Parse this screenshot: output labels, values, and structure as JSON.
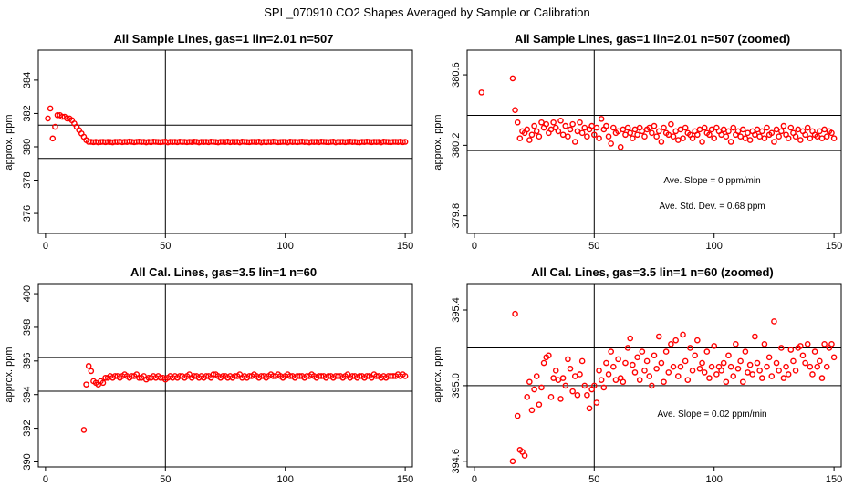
{
  "page_title": "SPL_070910  CO2 Shapes Averaged by Sample or Calibration",
  "marker_color": "#ff0000",
  "chart_data": [
    {
      "type": "scatter",
      "title": "All Sample Lines, gas=1 lin=2.01 n=507",
      "xlabel": "",
      "ylabel": "approx. ppm",
      "xlim": [
        -3,
        153
      ],
      "ylim": [
        374.8,
        385.8
      ],
      "xticks": [
        "0",
        "50",
        "100",
        "150"
      ],
      "yticks": [
        "376",
        "378",
        "380",
        "382",
        "384"
      ],
      "vline": 50,
      "hlines": [
        379.3,
        381.3
      ],
      "annotations": [],
      "x": [
        1,
        2,
        3,
        4,
        5,
        6,
        7,
        8,
        9,
        10,
        11,
        12,
        13,
        14,
        15,
        16,
        17,
        18,
        19,
        20,
        21,
        22,
        23,
        24,
        25,
        26,
        27,
        28,
        29,
        30,
        31,
        32,
        33,
        34,
        35,
        36,
        37,
        38,
        39,
        40,
        41,
        42,
        43,
        44,
        45,
        46,
        47,
        48,
        49,
        50,
        51,
        52,
        53,
        54,
        55,
        56,
        57,
        58,
        59,
        60,
        61,
        62,
        63,
        64,
        65,
        66,
        67,
        68,
        69,
        70,
        71,
        72,
        73,
        74,
        75,
        76,
        77,
        78,
        79,
        80,
        81,
        82,
        83,
        84,
        85,
        86,
        87,
        88,
        89,
        90,
        91,
        92,
        93,
        94,
        95,
        96,
        97,
        98,
        99,
        100,
        101,
        102,
        103,
        104,
        105,
        106,
        107,
        108,
        109,
        110,
        111,
        112,
        113,
        114,
        115,
        116,
        117,
        118,
        119,
        120,
        121,
        122,
        123,
        124,
        125,
        126,
        127,
        128,
        129,
        130,
        131,
        132,
        133,
        134,
        135,
        136,
        137,
        138,
        139,
        140,
        141,
        142,
        143,
        144,
        145,
        146,
        147,
        148,
        149,
        150
      ],
      "y": [
        381.7,
        382.3,
        380.5,
        381.2,
        381.9,
        381.9,
        381.8,
        381.8,
        381.7,
        381.7,
        381.6,
        381.4,
        381.2,
        381.0,
        380.8,
        380.6,
        380.4,
        380.3,
        380.3,
        380.28,
        380.3,
        380.27,
        380.29,
        380.3,
        380.28,
        380.3,
        380.29,
        380.27,
        380.3,
        380.29,
        380.31,
        380.28,
        380.3,
        380.29,
        380.32,
        380.3,
        380.28,
        380.3,
        380.31,
        380.29,
        380.3,
        380.27,
        380.3,
        380.28,
        380.31,
        380.3,
        380.29,
        380.28,
        380.3,
        380.31,
        380.27,
        380.3,
        380.29,
        380.3,
        380.28,
        380.31,
        380.29,
        380.3,
        380.28,
        380.3,
        380.29,
        380.31,
        380.3,
        380.27,
        380.3,
        380.29,
        380.3,
        380.28,
        380.31,
        380.3,
        380.29,
        380.27,
        380.3,
        380.3,
        380.29,
        380.31,
        380.28,
        380.3,
        380.29,
        380.3,
        380.27,
        380.31,
        380.3,
        380.29,
        380.28,
        380.3,
        380.3,
        380.29,
        380.31,
        380.27,
        380.3,
        380.28,
        380.3,
        380.29,
        380.31,
        380.3,
        380.28,
        380.29,
        380.3,
        380.3,
        380.27,
        380.31,
        380.29,
        380.3,
        380.28,
        380.3,
        380.31,
        380.29,
        380.3,
        380.27,
        380.3,
        380.29,
        380.3,
        380.28,
        380.31,
        380.3,
        380.29,
        380.28,
        380.3,
        380.31,
        380.27,
        380.3,
        380.29,
        380.3,
        380.28,
        380.3,
        380.31,
        380.29,
        380.3,
        380.28,
        380.27,
        380.3,
        380.29,
        380.31,
        380.3,
        380.28,
        380.3,
        380.29,
        380.3,
        380.27,
        380.31,
        380.3,
        380.29,
        380.28,
        380.3,
        380.3,
        380.29,
        380.31,
        380.28,
        380.3
      ]
    },
    {
      "type": "scatter",
      "title": "All Sample Lines, gas=1 lin=2.01 n=507 (zoomed)",
      "xlabel": "",
      "ylabel": "approx. ppm",
      "xlim": [
        -3,
        153
      ],
      "ylim": [
        379.7,
        380.74
      ],
      "xticks": [
        "0",
        "50",
        "100",
        "150"
      ],
      "yticks": [
        "379.8",
        "380.2",
        "380.6"
      ],
      "vline": 50,
      "hlines": [
        380.17,
        380.37
      ],
      "annotations": [
        "Ave. Slope =  0  ppm/min",
        "Ave. Std. Dev. =  0.68  ppm"
      ],
      "x": [
        3,
        16,
        17,
        18,
        19,
        20,
        21,
        22,
        23,
        24,
        25,
        26,
        27,
        28,
        29,
        30,
        31,
        32,
        33,
        34,
        35,
        36,
        37,
        38,
        39,
        40,
        41,
        42,
        43,
        44,
        45,
        46,
        47,
        48,
        49,
        50,
        51,
        52,
        53,
        54,
        55,
        56,
        57,
        58,
        59,
        60,
        61,
        62,
        63,
        64,
        65,
        66,
        67,
        68,
        69,
        70,
        71,
        72,
        73,
        74,
        75,
        76,
        77,
        78,
        79,
        80,
        81,
        82,
        83,
        84,
        85,
        86,
        87,
        88,
        89,
        90,
        91,
        92,
        93,
        94,
        95,
        96,
        97,
        98,
        99,
        100,
        101,
        102,
        103,
        104,
        105,
        106,
        107,
        108,
        109,
        110,
        111,
        112,
        113,
        114,
        115,
        116,
        117,
        118,
        119,
        120,
        121,
        122,
        123,
        124,
        125,
        126,
        127,
        128,
        129,
        130,
        131,
        132,
        133,
        134,
        135,
        136,
        137,
        138,
        139,
        140,
        141,
        142,
        143,
        144,
        145,
        146,
        147,
        148,
        149,
        150
      ],
      "y": [
        380.5,
        380.58,
        380.4,
        380.33,
        380.24,
        380.28,
        380.27,
        380.29,
        380.23,
        380.26,
        380.31,
        380.28,
        380.25,
        380.33,
        380.3,
        380.32,
        380.27,
        380.29,
        380.33,
        380.3,
        380.28,
        380.34,
        380.26,
        380.31,
        380.25,
        380.29,
        380.32,
        380.22,
        380.28,
        380.33,
        380.27,
        380.3,
        380.25,
        380.29,
        380.31,
        380.26,
        380.3,
        380.24,
        380.35,
        380.29,
        380.31,
        380.25,
        380.21,
        380.3,
        380.27,
        380.28,
        380.19,
        380.29,
        380.26,
        380.3,
        380.27,
        380.24,
        380.29,
        380.26,
        380.3,
        380.28,
        380.25,
        380.29,
        380.3,
        380.27,
        380.31,
        380.25,
        380.28,
        380.22,
        380.3,
        380.27,
        380.26,
        380.32,
        380.25,
        380.28,
        380.23,
        380.29,
        380.24,
        380.3,
        380.27,
        380.26,
        380.24,
        380.28,
        380.26,
        380.29,
        380.22,
        380.3,
        380.27,
        380.26,
        380.29,
        380.24,
        380.3,
        380.28,
        380.26,
        380.29,
        380.25,
        380.28,
        380.22,
        380.3,
        380.26,
        380.28,
        380.25,
        380.29,
        380.24,
        380.27,
        380.23,
        380.28,
        380.26,
        380.29,
        380.25,
        380.28,
        380.24,
        380.3,
        380.26,
        380.27,
        380.22,
        380.29,
        380.25,
        380.28,
        380.31,
        380.26,
        380.24,
        380.3,
        380.27,
        380.25,
        380.29,
        380.23,
        380.28,
        380.26,
        380.3,
        380.24,
        380.28,
        380.26,
        380.25,
        380.28,
        380.24,
        380.29,
        380.25,
        380.28,
        380.27,
        380.24
      ]
    },
    {
      "type": "scatter",
      "title": "All Cal. Lines, gas=3.5 lin=1 n=60",
      "xlabel": "",
      "ylabel": "approx. ppm",
      "xlim": [
        -3,
        153
      ],
      "ylim": [
        389.7,
        400.6
      ],
      "xticks": [
        "0",
        "50",
        "100",
        "150"
      ],
      "yticks": [
        "390",
        "392",
        "394",
        "396",
        "398",
        "400"
      ],
      "vline": 50,
      "hlines": [
        394.2,
        396.2
      ],
      "annotations": [],
      "x": [
        16,
        17,
        18,
        19,
        20,
        21,
        22,
        23,
        24,
        25,
        26,
        27,
        28,
        29,
        30,
        31,
        32,
        33,
        34,
        35,
        36,
        37,
        38,
        39,
        40,
        41,
        42,
        43,
        44,
        45,
        46,
        47,
        48,
        49,
        50,
        51,
        52,
        53,
        54,
        55,
        56,
        57,
        58,
        59,
        60,
        61,
        62,
        63,
        64,
        65,
        66,
        67,
        68,
        69,
        70,
        71,
        72,
        73,
        74,
        75,
        76,
        77,
        78,
        79,
        80,
        81,
        82,
        83,
        84,
        85,
        86,
        87,
        88,
        89,
        90,
        91,
        92,
        93,
        94,
        95,
        96,
        97,
        98,
        99,
        100,
        101,
        102,
        103,
        104,
        105,
        106,
        107,
        108,
        109,
        110,
        111,
        112,
        113,
        114,
        115,
        116,
        117,
        118,
        119,
        120,
        121,
        122,
        123,
        124,
        125,
        126,
        127,
        128,
        129,
        130,
        131,
        132,
        133,
        134,
        135,
        136,
        137,
        138,
        139,
        140,
        141,
        142,
        143,
        144,
        145,
        146,
        147,
        148,
        149,
        150
      ],
      "y": [
        391.9,
        394.6,
        395.7,
        395.4,
        394.8,
        394.7,
        394.6,
        394.8,
        394.7,
        395.0,
        395.0,
        395.1,
        395.0,
        395.1,
        395.1,
        395.0,
        395.1,
        395.2,
        395.1,
        395.0,
        395.1,
        395.1,
        395.2,
        395.0,
        395.0,
        395.1,
        394.9,
        395.0,
        395.0,
        395.1,
        395.0,
        395.1,
        395.0,
        395.0,
        394.9,
        395.0,
        395.1,
        395.0,
        395.1,
        395.0,
        395.1,
        395.1,
        395.0,
        395.1,
        395.2,
        395.0,
        395.1,
        395.1,
        395.0,
        395.1,
        395.0,
        395.1,
        395.1,
        395.0,
        395.2,
        395.2,
        395.1,
        395.0,
        395.1,
        395.1,
        395.0,
        395.1,
        395.0,
        395.1,
        395.1,
        395.2,
        395.0,
        395.1,
        395.0,
        395.1,
        395.1,
        395.2,
        395.1,
        395.0,
        395.1,
        395.1,
        395.0,
        395.1,
        395.2,
        395.1,
        395.1,
        395.2,
        395.1,
        395.0,
        395.1,
        395.2,
        395.1,
        395.1,
        395.0,
        395.1,
        395.1,
        395.1,
        395.0,
        395.1,
        395.1,
        395.2,
        395.1,
        395.0,
        395.1,
        395.1,
        395.1,
        395.0,
        395.1,
        395.1,
        395.0,
        395.1,
        395.1,
        395.1,
        395.0,
        395.1,
        395.2,
        395.0,
        395.1,
        395.1,
        395.0,
        395.1,
        395.1,
        395.0,
        395.1,
        395.1,
        395.0,
        395.2,
        395.1,
        395.1,
        395.0,
        395.1,
        395.0,
        395.1,
        395.1,
        395.1,
        395.1,
        395.2,
        395.1,
        395.2,
        395.1
      ]
    },
    {
      "type": "scatter",
      "title": "All Cal. Lines, gas=3.5 lin=1 n=60 (zoomed)",
      "xlabel": "",
      "ylabel": "approx. ppm",
      "xlim": [
        -3,
        153
      ],
      "ylim": [
        394.57,
        395.54
      ],
      "xticks": [
        "0",
        "50",
        "100",
        "150"
      ],
      "yticks": [
        "394.6",
        "395.0",
        "395.4"
      ],
      "vline": 50,
      "hlines": [
        395.0,
        395.2
      ],
      "annotations": [
        "Ave. Slope =  0.02  ppm/min"
      ],
      "x": [
        16,
        17,
        18,
        19,
        20,
        21,
        22,
        23,
        24,
        25,
        26,
        27,
        28,
        29,
        30,
        31,
        32,
        33,
        34,
        35,
        36,
        37,
        38,
        39,
        40,
        41,
        42,
        43,
        44,
        45,
        46,
        47,
        48,
        49,
        50,
        51,
        52,
        53,
        54,
        55,
        56,
        57,
        58,
        59,
        60,
        61,
        62,
        63,
        64,
        65,
        66,
        67,
        68,
        69,
        70,
        71,
        72,
        73,
        74,
        75,
        76,
        77,
        78,
        79,
        80,
        81,
        82,
        83,
        84,
        85,
        86,
        87,
        88,
        89,
        90,
        91,
        92,
        93,
        94,
        95,
        96,
        97,
        98,
        99,
        100,
        101,
        102,
        103,
        104,
        105,
        106,
        107,
        108,
        109,
        110,
        111,
        112,
        113,
        114,
        115,
        116,
        117,
        118,
        119,
        120,
        121,
        122,
        123,
        124,
        125,
        126,
        127,
        128,
        129,
        130,
        131,
        132,
        133,
        134,
        135,
        136,
        137,
        138,
        139,
        140,
        141,
        142,
        143,
        144,
        145,
        146,
        147,
        148,
        149,
        150
      ],
      "y": [
        394.6,
        395.38,
        394.84,
        394.66,
        394.65,
        394.63,
        394.94,
        395.02,
        394.87,
        394.98,
        395.05,
        394.9,
        394.99,
        395.12,
        395.15,
        395.16,
        394.94,
        395.04,
        395.08,
        395.03,
        394.93,
        395.04,
        395.0,
        395.14,
        395.09,
        394.97,
        395.05,
        394.95,
        395.06,
        395.13,
        395.0,
        394.95,
        394.88,
        394.98,
        395.0,
        394.91,
        395.08,
        395.03,
        394.99,
        395.12,
        395.06,
        395.18,
        395.1,
        395.03,
        395.14,
        395.04,
        395.02,
        395.12,
        395.2,
        395.25,
        395.11,
        395.07,
        395.15,
        395.03,
        395.18,
        395.08,
        395.13,
        395.05,
        395.0,
        395.16,
        395.09,
        395.26,
        395.12,
        395.02,
        395.18,
        395.07,
        395.22,
        395.1,
        395.24,
        395.05,
        395.1,
        395.27,
        395.13,
        395.03,
        395.2,
        395.08,
        395.16,
        395.24,
        395.09,
        395.12,
        395.07,
        395.18,
        395.04,
        395.1,
        395.21,
        395.06,
        395.1,
        395.08,
        395.12,
        395.02,
        395.16,
        395.1,
        395.05,
        395.22,
        395.09,
        395.13,
        395.02,
        395.18,
        395.07,
        395.11,
        395.06,
        395.26,
        395.12,
        395.08,
        395.04,
        395.22,
        395.1,
        395.15,
        395.05,
        395.34,
        395.12,
        395.08,
        395.2,
        395.04,
        395.1,
        395.06,
        395.19,
        395.13,
        395.08,
        395.2,
        395.21,
        395.16,
        395.12,
        395.22,
        395.1,
        395.06,
        395.18,
        395.1,
        395.13,
        395.04,
        395.22,
        395.1,
        395.2,
        395.22,
        395.15
      ]
    }
  ]
}
